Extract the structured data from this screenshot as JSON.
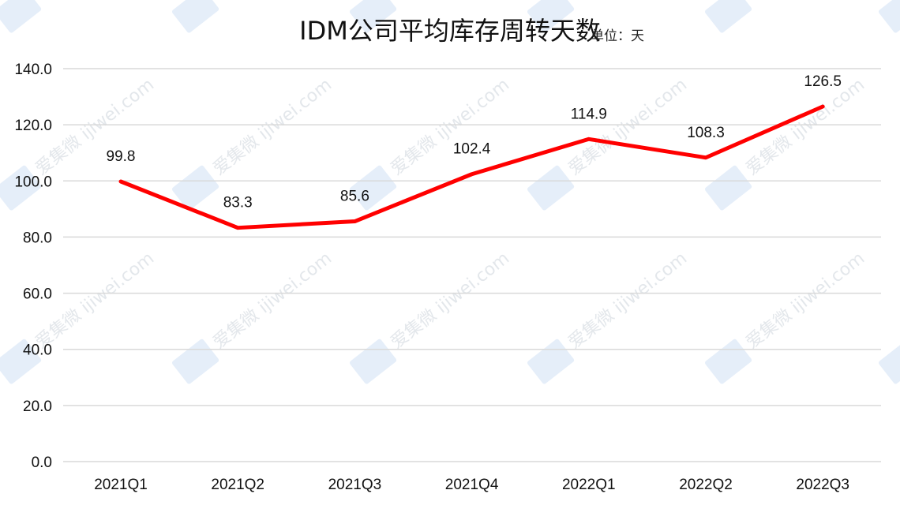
{
  "chart_data": {
    "type": "line",
    "title": "IDM公司平均库存周转天数",
    "unit_label": "单位：天",
    "categories": [
      "2021Q1",
      "2021Q2",
      "2021Q3",
      "2021Q4",
      "2022Q1",
      "2022Q2",
      "2022Q3"
    ],
    "series": [
      {
        "values": [
          99.8,
          83.3,
          85.6,
          102.4,
          114.9,
          108.3,
          126.5
        ],
        "color": "#ff0000"
      }
    ],
    "y_ticks": [
      "0.0",
      "20.0",
      "40.0",
      "60.0",
      "80.0",
      "100.0",
      "120.0",
      "140.0"
    ],
    "ylim": [
      0,
      140
    ],
    "grid": true,
    "legend": "none",
    "data_labels": [
      "99.8",
      "83.3",
      "85.6",
      "102.4",
      "114.9",
      "108.3",
      "126.5"
    ],
    "watermark": "爱集微 ijiwei.com"
  }
}
